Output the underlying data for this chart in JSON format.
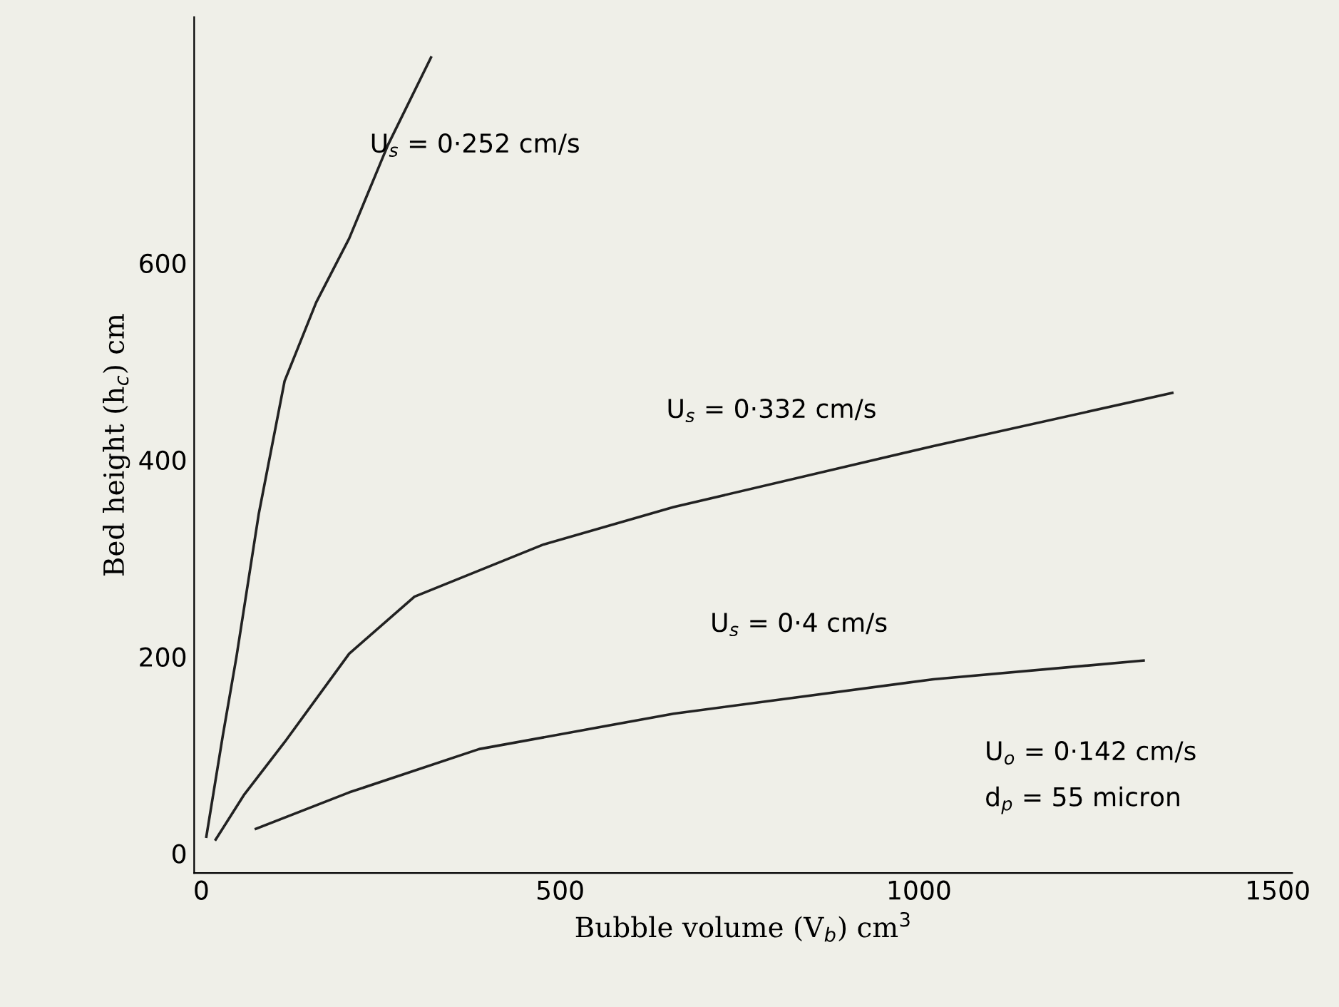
{
  "chart_data": {
    "type": "line",
    "xlabel": "Bubble volume (V$_{b}$) cm$^{3}$",
    "ylabel": "Bed height (h$_{c}$) cm",
    "xlim": [
      -10,
      1520
    ],
    "ylim": [
      -20,
      850
    ],
    "xticks": [
      0,
      500,
      1000,
      1500
    ],
    "yticks": [
      0,
      200,
      400,
      600
    ],
    "grid": false,
    "marker": "none",
    "line_style": "solid",
    "series": [
      {
        "color": "#222222",
        "x": [
          7,
          30,
          49,
          80,
          116,
          160,
          206,
          260,
          320
        ],
        "values": [
          17,
          120,
          200,
          345,
          480,
          560,
          625,
          720,
          809
        ]
      },
      {
        "color": "#222222",
        "x": [
          20,
          60,
          116,
          206,
          297,
          477,
          658,
          1020,
          1353
        ],
        "values": [
          14,
          60,
          113,
          203,
          261,
          314,
          352,
          414,
          468
        ]
      },
      {
        "color": "#222222",
        "x": [
          76,
          206,
          387,
          658,
          1020,
          1313
        ],
        "values": [
          25,
          62,
          106,
          142,
          177,
          196
        ]
      }
    ],
    "annotations": [
      "U$_{s}$ = 0·252 cm/s",
      "U$_{s}$ = 0·332 cm/s",
      "U$_{s}$ = 0·4 cm/s",
      "U$_{o}$ = 0·142 cm/s",
      "d$_{p}$ = 55 micron"
    ]
  }
}
